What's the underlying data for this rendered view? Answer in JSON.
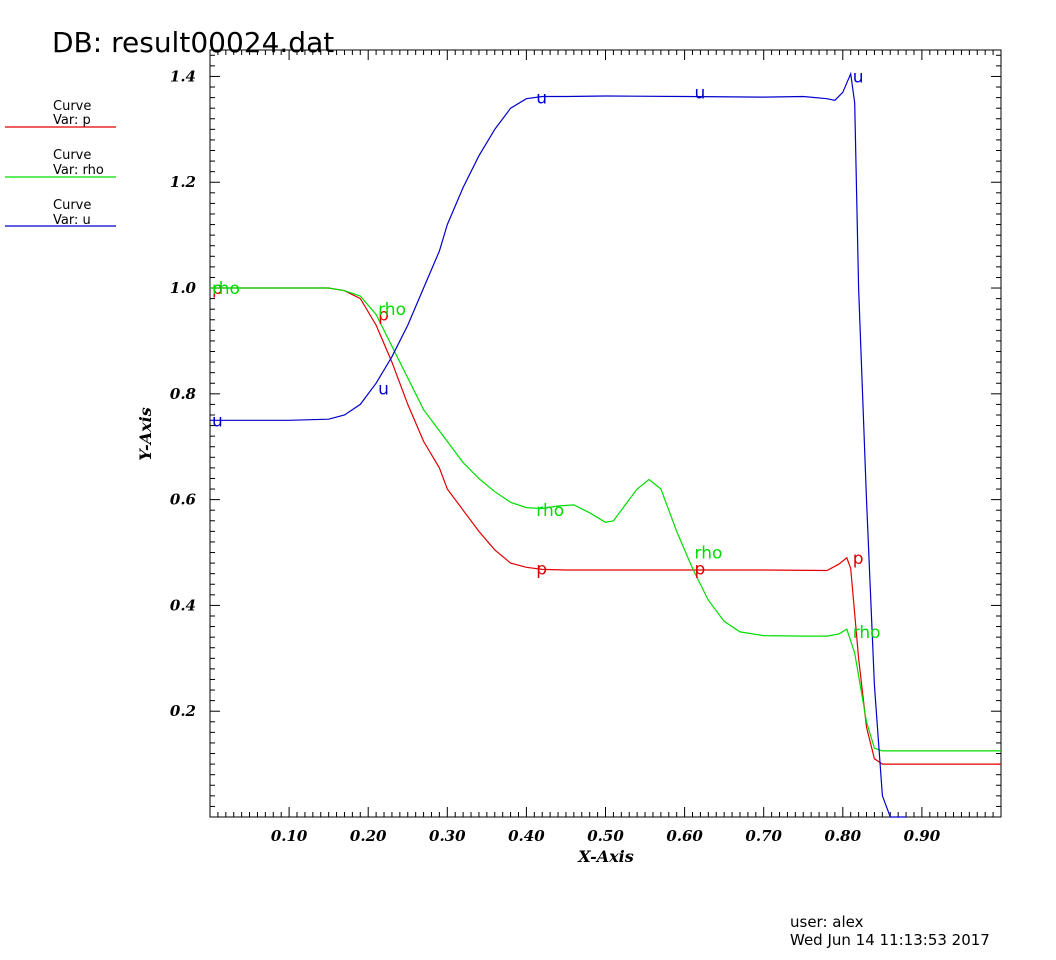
{
  "header": {
    "title": "DB: result00024.dat"
  },
  "footer": {
    "user": "user: alex",
    "date": "Wed Jun 14 11:13:53 2017"
  },
  "legend": [
    {
      "title": "Curve",
      "var": "Var: p",
      "color": "#e00000"
    },
    {
      "title": "Curve",
      "var": "Var: rho",
      "color": "#00dd00"
    },
    {
      "title": "Curve",
      "var": "Var: u",
      "color": "#0000cc"
    }
  ],
  "chart_data": {
    "type": "line",
    "xlabel": "X-Axis",
    "ylabel": "Y-Axis",
    "xlim": [
      0.0,
      1.0
    ],
    "ylim": [
      0.0,
      1.45
    ],
    "xticks": [
      "0.10",
      "0.20",
      "0.30",
      "0.40",
      "0.50",
      "0.60",
      "0.70",
      "0.80",
      "0.90"
    ],
    "yticks": [
      "0.2",
      "0.4",
      "0.6",
      "0.8",
      "1.0",
      "1.2",
      "1.4"
    ],
    "series": [
      {
        "name": "p",
        "color": "#e00000",
        "label": "p",
        "points": [
          [
            0.0,
            1.0
          ],
          [
            0.1,
            1.0
          ],
          [
            0.15,
            1.0
          ],
          [
            0.17,
            0.995
          ],
          [
            0.19,
            0.98
          ],
          [
            0.21,
            0.93
          ],
          [
            0.23,
            0.86
          ],
          [
            0.25,
            0.78
          ],
          [
            0.27,
            0.71
          ],
          [
            0.29,
            0.66
          ],
          [
            0.3,
            0.62
          ],
          [
            0.32,
            0.58
          ],
          [
            0.34,
            0.54
          ],
          [
            0.36,
            0.505
          ],
          [
            0.38,
            0.48
          ],
          [
            0.4,
            0.472
          ],
          [
            0.42,
            0.468
          ],
          [
            0.45,
            0.467
          ],
          [
            0.5,
            0.467
          ],
          [
            0.6,
            0.467
          ],
          [
            0.7,
            0.467
          ],
          [
            0.78,
            0.466
          ],
          [
            0.795,
            0.478
          ],
          [
            0.805,
            0.49
          ],
          [
            0.81,
            0.47
          ],
          [
            0.82,
            0.3
          ],
          [
            0.83,
            0.17
          ],
          [
            0.84,
            0.11
          ],
          [
            0.85,
            0.1
          ],
          [
            0.9,
            0.1
          ],
          [
            1.0,
            0.1
          ]
        ],
        "label_points": [
          [
            0.0,
            1.0
          ],
          [
            0.21,
            0.95
          ],
          [
            0.41,
            0.47
          ],
          [
            0.61,
            0.47
          ],
          [
            0.81,
            0.49
          ]
        ]
      },
      {
        "name": "rho",
        "color": "#00dd00",
        "label": "rho",
        "points": [
          [
            0.0,
            1.0
          ],
          [
            0.1,
            1.0
          ],
          [
            0.15,
            1.0
          ],
          [
            0.17,
            0.995
          ],
          [
            0.19,
            0.985
          ],
          [
            0.21,
            0.95
          ],
          [
            0.23,
            0.89
          ],
          [
            0.25,
            0.83
          ],
          [
            0.27,
            0.77
          ],
          [
            0.29,
            0.73
          ],
          [
            0.3,
            0.71
          ],
          [
            0.32,
            0.67
          ],
          [
            0.34,
            0.64
          ],
          [
            0.36,
            0.615
          ],
          [
            0.38,
            0.595
          ],
          [
            0.4,
            0.585
          ],
          [
            0.42,
            0.583
          ],
          [
            0.44,
            0.588
          ],
          [
            0.46,
            0.59
          ],
          [
            0.48,
            0.575
          ],
          [
            0.5,
            0.557
          ],
          [
            0.51,
            0.56
          ],
          [
            0.52,
            0.58
          ],
          [
            0.54,
            0.62
          ],
          [
            0.555,
            0.638
          ],
          [
            0.57,
            0.62
          ],
          [
            0.59,
            0.54
          ],
          [
            0.61,
            0.47
          ],
          [
            0.63,
            0.41
          ],
          [
            0.65,
            0.37
          ],
          [
            0.67,
            0.35
          ],
          [
            0.7,
            0.343
          ],
          [
            0.75,
            0.342
          ],
          [
            0.78,
            0.342
          ],
          [
            0.795,
            0.346
          ],
          [
            0.805,
            0.355
          ],
          [
            0.815,
            0.31
          ],
          [
            0.83,
            0.18
          ],
          [
            0.84,
            0.13
          ],
          [
            0.85,
            0.125
          ],
          [
            0.9,
            0.125
          ],
          [
            1.0,
            0.125
          ]
        ],
        "label_points": [
          [
            0.0,
            1.0
          ],
          [
            0.21,
            0.96
          ],
          [
            0.41,
            0.58
          ],
          [
            0.61,
            0.5
          ],
          [
            0.81,
            0.35
          ]
        ]
      },
      {
        "name": "u",
        "color": "#0000cc",
        "label": "u",
        "points": [
          [
            0.0,
            0.75
          ],
          [
            0.1,
            0.75
          ],
          [
            0.15,
            0.752
          ],
          [
            0.17,
            0.76
          ],
          [
            0.19,
            0.78
          ],
          [
            0.21,
            0.82
          ],
          [
            0.23,
            0.87
          ],
          [
            0.25,
            0.93
          ],
          [
            0.27,
            1.0
          ],
          [
            0.29,
            1.07
          ],
          [
            0.3,
            1.12
          ],
          [
            0.32,
            1.19
          ],
          [
            0.34,
            1.25
          ],
          [
            0.36,
            1.3
          ],
          [
            0.38,
            1.34
          ],
          [
            0.4,
            1.358
          ],
          [
            0.42,
            1.362
          ],
          [
            0.45,
            1.362
          ],
          [
            0.5,
            1.363
          ],
          [
            0.6,
            1.362
          ],
          [
            0.7,
            1.361
          ],
          [
            0.75,
            1.362
          ],
          [
            0.78,
            1.358
          ],
          [
            0.79,
            1.355
          ],
          [
            0.8,
            1.37
          ],
          [
            0.81,
            1.405
          ],
          [
            0.815,
            1.35
          ],
          [
            0.82,
            1.0
          ],
          [
            0.83,
            0.6
          ],
          [
            0.84,
            0.25
          ],
          [
            0.85,
            0.04
          ],
          [
            0.86,
            0.0
          ],
          [
            0.88,
            0.0
          ]
        ],
        "label_points": [
          [
            0.0,
            0.75
          ],
          [
            0.21,
            0.81
          ],
          [
            0.41,
            1.36
          ],
          [
            0.61,
            1.37
          ],
          [
            0.81,
            1.4
          ]
        ]
      }
    ]
  }
}
